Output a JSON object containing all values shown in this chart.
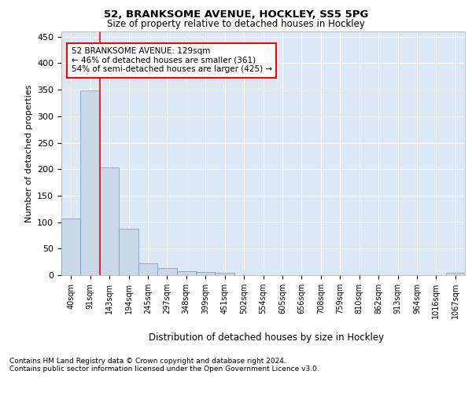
{
  "title1": "52, BRANKSOME AVENUE, HOCKLEY, SS5 5PG",
  "title2": "Size of property relative to detached houses in Hockley",
  "xlabel": "Distribution of detached houses by size in Hockley",
  "ylabel": "Number of detached properties",
  "categories": [
    "40sqm",
    "91sqm",
    "143sqm",
    "194sqm",
    "245sqm",
    "297sqm",
    "348sqm",
    "399sqm",
    "451sqm",
    "502sqm",
    "554sqm",
    "605sqm",
    "656sqm",
    "708sqm",
    "759sqm",
    "810sqm",
    "862sqm",
    "913sqm",
    "964sqm",
    "1016sqm",
    "1067sqm"
  ],
  "values": [
    107,
    349,
    203,
    88,
    22,
    13,
    8,
    6,
    4,
    0,
    0,
    0,
    0,
    0,
    0,
    0,
    0,
    0,
    0,
    0,
    4
  ],
  "bar_color": "#c8d8e8",
  "bar_edge_color": "#7099bb",
  "annotation_text": "52 BRANKSOME AVENUE: 129sqm\n← 46% of detached houses are smaller (361)\n54% of semi-detached houses are larger (425) →",
  "red_line_x": 1.5,
  "ylim": [
    0,
    460
  ],
  "yticks": [
    0,
    50,
    100,
    150,
    200,
    250,
    300,
    350,
    400,
    450
  ],
  "footer1": "Contains HM Land Registry data © Crown copyright and database right 2024.",
  "footer2": "Contains public sector information licensed under the Open Government Licence v3.0.",
  "plot_bg_color": "#dce8f5"
}
